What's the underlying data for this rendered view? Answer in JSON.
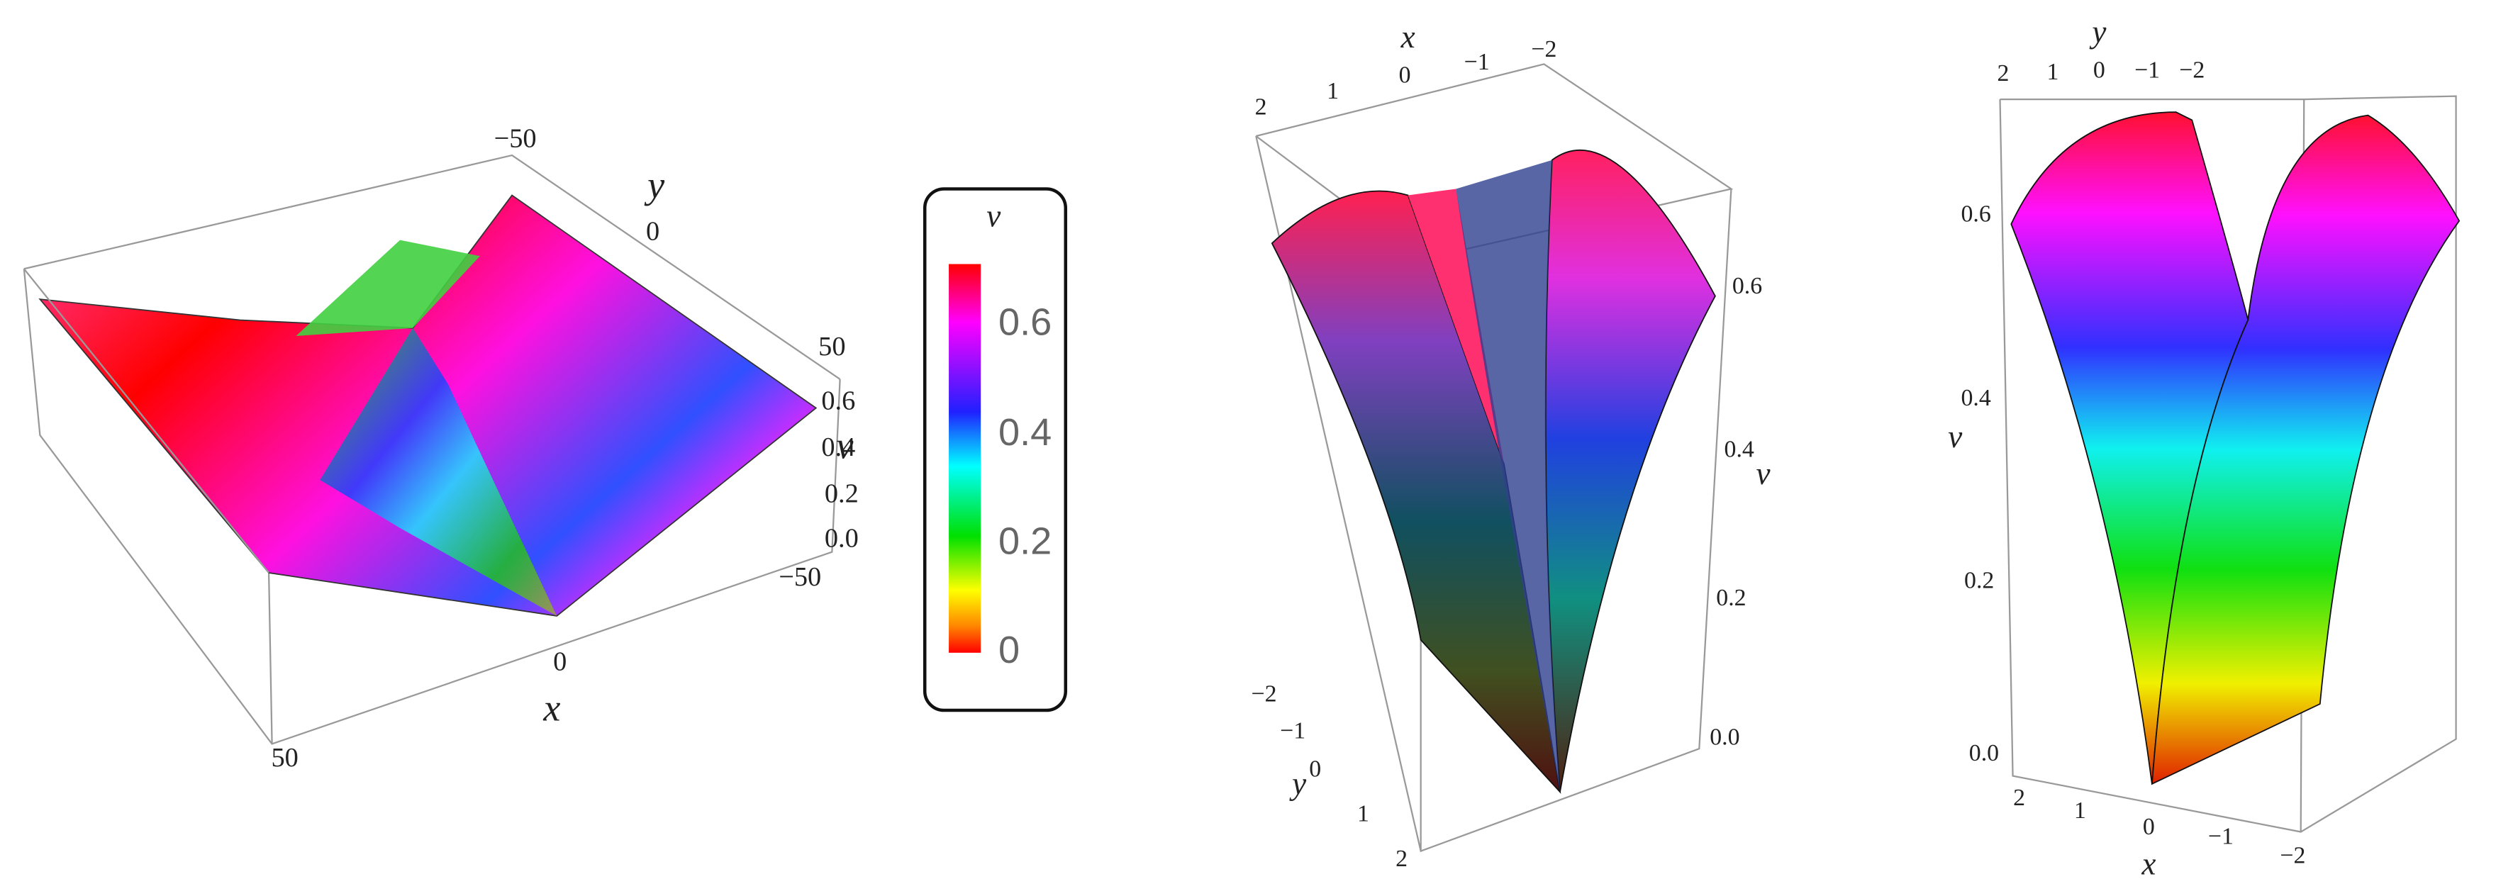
{
  "panels": [
    {
      "axes": {
        "x": {
          "label": "x",
          "ticks": [
            "−50",
            "0",
            "50"
          ]
        },
        "y": {
          "label": "y",
          "ticks": [
            "−50",
            "0",
            "50"
          ]
        },
        "v": {
          "label": "v",
          "ticks": [
            "0.0",
            "0.2",
            "0.4",
            "0.6"
          ]
        }
      }
    },
    {
      "axes": {
        "x": {
          "label": "x",
          "ticks": [
            "2",
            "1",
            "0",
            "−1",
            "−2"
          ]
        },
        "y": {
          "label": "y",
          "ticks": [
            "−2",
            "−1",
            "0",
            "1",
            "2"
          ]
        },
        "v": {
          "label": "v",
          "ticks": [
            "0.0",
            "0.2",
            "0.4",
            "0.6"
          ]
        }
      }
    },
    {
      "axes": {
        "x": {
          "label": "x",
          "ticks": [
            "2",
            "1",
            "0",
            "−1",
            "−2"
          ]
        },
        "y": {
          "label": "y",
          "ticks": [
            "2",
            "1",
            "0",
            "−1",
            "−2"
          ]
        },
        "v": {
          "label": "v",
          "ticks": [
            "0.0",
            "0.2",
            "0.4",
            "0.6"
          ]
        }
      }
    }
  ],
  "colorbar": {
    "title": "v",
    "ticks": [
      "0",
      "0.2",
      "0.4",
      "0.6"
    ]
  }
}
